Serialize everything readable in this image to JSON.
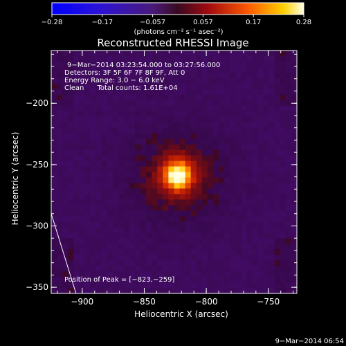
{
  "chart_data": {
    "type": "heatmap",
    "title": "Reconstructed RHESSI Image",
    "xlabel": "Heliocentric X (arcsec)",
    "ylabel": "Heliocentric Y (arcsec)",
    "xlim": [
      -925,
      -727
    ],
    "ylim": [
      -355,
      -157
    ],
    "xticks": [
      -900,
      -850,
      -800,
      -750
    ],
    "yticks": [
      -350,
      -300,
      -250,
      -200
    ],
    "xtick_labels": [
      "−900",
      "−850",
      "−800",
      "−750"
    ],
    "ytick_labels": [
      "−350",
      "−300",
      "−250",
      "−200"
    ],
    "colorbar": {
      "range": [
        -0.28,
        0.28
      ],
      "tick_labels": [
        "−0.28",
        "−0.17",
        "−0.057",
        "0.057",
        "0.17",
        "0.28"
      ],
      "unit_label": "(photons cm⁻² s⁻¹ asec⁻²)"
    },
    "annotations": [
      "9−Mar−2014 03:23:54.000  to  03:27:56.000",
      "Detectors: 3F 5F 6F 7F 8F 9F, Att 0",
      "Energy Range: 3.0 − 6.0 keV",
      "Clean      Total counts: 1.61E+04"
    ],
    "peak": {
      "x": -823,
      "y": -259,
      "label": "Position of Peak = [−823,−259]"
    },
    "timestamp": "9−Mar−2014 06:54",
    "limb_line": [
      [
        -925,
        -290
      ],
      [
        -905,
        -355
      ]
    ],
    "colors": {
      "background": "#000000",
      "text": "#ffffff"
    }
  }
}
